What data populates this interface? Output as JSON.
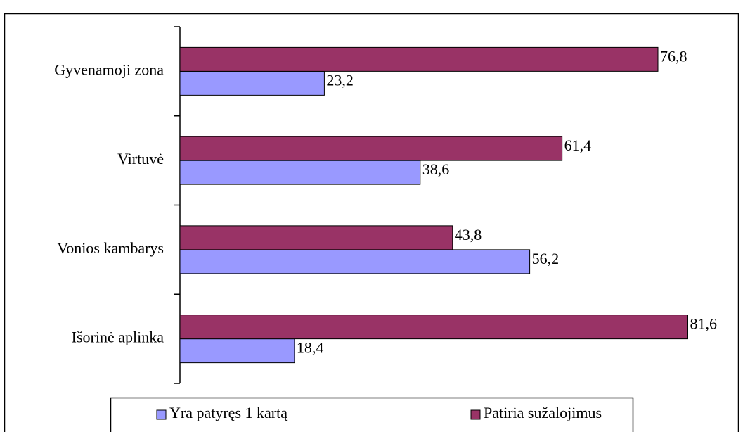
{
  "chart_data": {
    "type": "bar",
    "orientation": "horizontal",
    "categories": [
      "Gyvenamoji zona",
      "Virtuvė",
      "Vonios kambarys",
      "Išorinė aplinka"
    ],
    "series": [
      {
        "name": "Yra patyręs 1 kartą",
        "color": "#9999ff",
        "values": [
          23.2,
          38.6,
          56.2,
          18.4
        ],
        "value_labels": [
          "23,2",
          "38,6",
          "56,2",
          "18,4"
        ]
      },
      {
        "name": "Patiria sužalojimus",
        "color": "#993366",
        "values": [
          76.8,
          61.4,
          43.8,
          81.6
        ],
        "value_labels": [
          "76,8",
          "61,4",
          "43,8",
          "81,6"
        ]
      }
    ],
    "legend": "bottom"
  }
}
